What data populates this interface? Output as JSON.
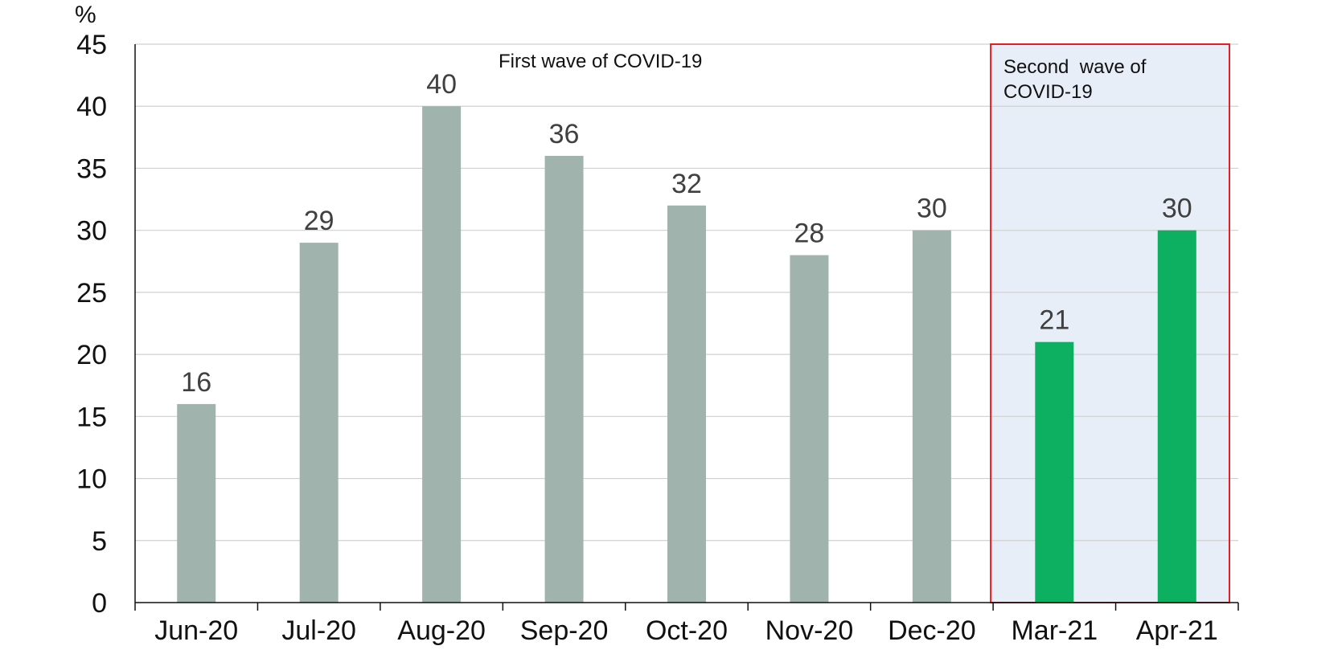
{
  "chart_data": {
    "type": "bar",
    "categories": [
      "Jun-20",
      "Jul-20",
      "Aug-20",
      "Sep-20",
      "Oct-20",
      "Nov-20",
      "Dec-20",
      "Mar-21",
      "Apr-21"
    ],
    "values": [
      16,
      29,
      40,
      36,
      32,
      28,
      30,
      21,
      30
    ],
    "data_labels": [
      "16",
      "29",
      "40",
      "36",
      "32",
      "28",
      "30",
      "21",
      "30"
    ],
    "ylabel": "%",
    "ylim": [
      0,
      45
    ],
    "yticks": [
      "0",
      "5",
      "10",
      "15",
      "20",
      "25",
      "30",
      "35",
      "40",
      "45"
    ],
    "grid": true,
    "colors": {
      "first_wave_bar": "#a0b4ad",
      "second_wave_bar": "#0daf60",
      "highlight_fill": "#e7eef8",
      "highlight_border": "#e41e26",
      "grid": "#d0d0d0"
    },
    "annotations": {
      "first_wave": "First wave of COVID-19",
      "second_wave_line1": "Second  wave of",
      "second_wave_line2": "COVID-19"
    },
    "second_wave_categories": [
      "Mar-21",
      "Apr-21"
    ]
  }
}
